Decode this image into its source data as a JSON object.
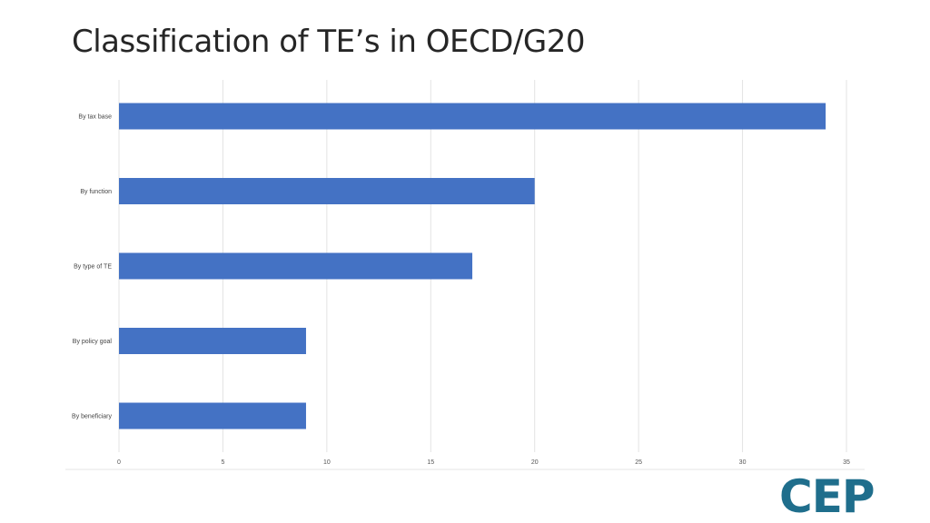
{
  "slide": {
    "title": "Classification of TE’s in OECD/G20",
    "logo_text": "CEP"
  },
  "colors": {
    "bar": "#4472c4",
    "grid": "#e3e3e3",
    "text": "#262626",
    "logo": "#1f6e8c"
  },
  "chart_data": {
    "type": "bar",
    "orientation": "horizontal",
    "categories": [
      "By tax base",
      "By function",
      "By type of TE",
      "By policy goal",
      "By beneficiary"
    ],
    "values": [
      34,
      20,
      17,
      9,
      9
    ],
    "xlim": [
      0,
      35
    ],
    "xticks": [
      0,
      5,
      10,
      15,
      20,
      25,
      30,
      35
    ],
    "title": "",
    "xlabel": "",
    "ylabel": "",
    "grid": "vertical",
    "legend": "none"
  }
}
